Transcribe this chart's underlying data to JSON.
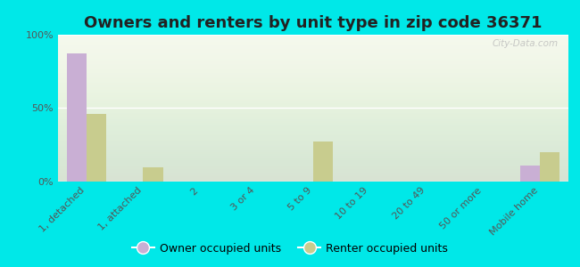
{
  "title": "Owners and renters by unit type in zip code 36371",
  "categories": [
    "1, detached",
    "1, attached",
    "2",
    "3 or 4",
    "5 to 9",
    "10 to 19",
    "20 to 49",
    "50 or more",
    "Mobile home"
  ],
  "owner_values": [
    87,
    0,
    0,
    0,
    0,
    0,
    0,
    0,
    11
  ],
  "renter_values": [
    46,
    10,
    0,
    0,
    27,
    0,
    0,
    0,
    20
  ],
  "owner_color": "#c9afd4",
  "renter_color": "#c8cc8e",
  "background_color": "#00e8e8",
  "plot_bg_color": "#f5f8ec",
  "ylim": [
    0,
    100
  ],
  "yticks": [
    0,
    50,
    100
  ],
  "ytick_labels": [
    "0%",
    "50%",
    "100%"
  ],
  "bar_width": 0.35,
  "legend_owner": "Owner occupied units",
  "legend_renter": "Renter occupied units",
  "watermark": "City-Data.com",
  "title_fontsize": 13,
  "tick_fontsize": 8,
  "legend_fontsize": 9
}
